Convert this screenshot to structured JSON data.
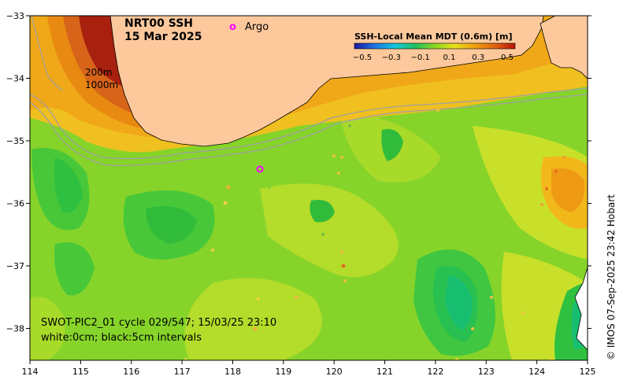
{
  "title": {
    "line1": "NRT00 SSH",
    "line2": "15 Mar 2025"
  },
  "legend": {
    "argo_symbol": "o",
    "argo_label": "Argo"
  },
  "isobaths": {
    "shallow": "200m",
    "deep": "1000m"
  },
  "colorbar": {
    "title": "SSH-Local Mean MDT (0.6m) [m]",
    "ticks": [
      "−0.5",
      "−0.3",
      "−0.1",
      "0.1",
      "0.3",
      "0.5"
    ],
    "colors": [
      "#1a1aa0",
      "#1e6fe0",
      "#11c8e0",
      "#20c060",
      "#8ad820",
      "#e8e020",
      "#f0a010",
      "#e06010",
      "#b81408"
    ]
  },
  "swot": {
    "line1": "SWOT-PIC2_01 cycle 029/547; 15/03/25 23:10",
    "line2": "white:0cm; black:5cm intervals"
  },
  "credit": "© IMOS 07-Sep-2025 23:42 Hobart",
  "axes": {
    "x_ticks": [
      "114",
      "115",
      "116",
      "117",
      "118",
      "119",
      "120",
      "121",
      "122",
      "123",
      "124",
      "125"
    ],
    "y_ticks": [
      "−33",
      "−34",
      "−35",
      "−36",
      "−37",
      "−38"
    ]
  },
  "colors": {
    "land": "#fdc99c",
    "ocean_base": "#86d42a",
    "argo": "#ff00ff"
  }
}
